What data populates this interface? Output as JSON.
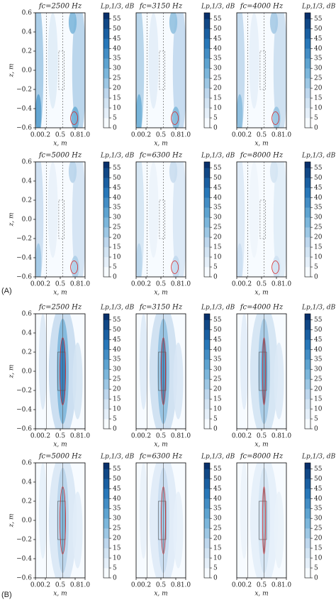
{
  "panel_labels": [
    "(A)",
    "(B)"
  ],
  "chart_data": [
    {
      "type": "contour",
      "title": "fc=2500 Hz",
      "xlabel": "x, m",
      "ylabel": "z, m",
      "xlim": [
        0,
        1
      ],
      "ylim": [
        -0.6,
        0.6
      ],
      "xticks": [
        {
          "value": 0,
          "label": "0.0"
        },
        {
          "value": 0.2,
          "label": "0.2"
        },
        {
          "value": 0.5,
          "label": "0.5"
        },
        {
          "value": 0.8,
          "label": "0.8"
        },
        {
          "value": 1,
          "label": "1.0"
        }
      ],
      "yticks": [
        {
          "value": -0.6,
          "label": "−0.6"
        },
        {
          "value": -0.4,
          "label": "−0.4"
        },
        {
          "value": -0.2,
          "label": "−0.2"
        },
        {
          "value": 0,
          "label": "0.0"
        },
        {
          "value": 0.2,
          "label": "0.2"
        },
        {
          "value": 0.4,
          "label": "0.4"
        },
        {
          "value": 0.6,
          "label": "0.6"
        }
      ],
      "colorbar": {
        "label": "Lp,1/3, dB",
        "lim": [
          0,
          58
        ],
        "ticks": [
          0,
          5,
          10,
          15,
          20,
          25,
          30,
          35,
          40,
          45,
          50,
          55
        ]
      }
    },
    {
      "type": "contour",
      "title": "fc=3150 Hz",
      "xlabel": "x, m",
      "xlim": [
        0,
        1
      ],
      "ylim": [
        -0.6,
        0.6
      ],
      "xticks": [
        {
          "value": 0,
          "label": "0.0"
        },
        {
          "value": 0.2,
          "label": "0.2"
        },
        {
          "value": 0.5,
          "label": "0.5"
        },
        {
          "value": 0.8,
          "label": "0.8"
        },
        {
          "value": 1,
          "label": "1.0"
        }
      ],
      "yticks": [],
      "colorbar": {
        "label": "Lp,1/3, dB",
        "lim": [
          0,
          58
        ],
        "ticks": [
          0,
          5,
          10,
          15,
          20,
          25,
          30,
          35,
          40,
          45,
          50,
          55
        ]
      }
    },
    {
      "type": "contour",
      "title": "fc=4000 Hz",
      "xlabel": "x, m",
      "xlim": [
        0,
        1
      ],
      "ylim": [
        -0.6,
        0.6
      ],
      "xticks": [
        {
          "value": 0,
          "label": "0.0"
        },
        {
          "value": 0.2,
          "label": "0.2"
        },
        {
          "value": 0.5,
          "label": "0.5"
        },
        {
          "value": 0.8,
          "label": "0.8"
        },
        {
          "value": 1,
          "label": "1.0"
        }
      ],
      "yticks": [],
      "colorbar": {
        "label": "Lp,1/3, dB",
        "lim": [
          0,
          58
        ],
        "ticks": [
          0,
          5,
          10,
          15,
          20,
          25,
          30,
          35,
          40,
          45,
          50,
          55
        ]
      }
    },
    {
      "type": "contour",
      "title": "fc=5000 Hz",
      "xlabel": "x, m",
      "ylabel": "z, m",
      "xlim": [
        0,
        1
      ],
      "ylim": [
        -0.6,
        0.6
      ],
      "xticks": [
        {
          "value": 0,
          "label": "0.0"
        },
        {
          "value": 0.2,
          "label": "0.2"
        },
        {
          "value": 0.5,
          "label": "0.5"
        },
        {
          "value": 0.8,
          "label": "0.8"
        },
        {
          "value": 1,
          "label": "1.0"
        }
      ],
      "yticks": [
        {
          "value": -0.6,
          "label": "−0.6"
        },
        {
          "value": -0.4,
          "label": "−0.4"
        },
        {
          "value": -0.2,
          "label": "−0.2"
        },
        {
          "value": 0,
          "label": "0.0"
        },
        {
          "value": 0.2,
          "label": "0.2"
        },
        {
          "value": 0.4,
          "label": "0.4"
        },
        {
          "value": 0.6,
          "label": "0.6"
        }
      ],
      "colorbar": {
        "label": "Lp,1/3, dB",
        "lim": [
          0,
          58
        ],
        "ticks": [
          0,
          5,
          10,
          15,
          20,
          25,
          30,
          35,
          40,
          45,
          50,
          55
        ]
      }
    },
    {
      "type": "contour",
      "title": "fc=6300 Hz",
      "xlabel": "x, m",
      "xlim": [
        0,
        1
      ],
      "ylim": [
        -0.6,
        0.6
      ],
      "xticks": [
        {
          "value": 0,
          "label": "0.0"
        },
        {
          "value": 0.2,
          "label": "0.2"
        },
        {
          "value": 0.5,
          "label": "0.5"
        },
        {
          "value": 0.8,
          "label": "0.8"
        },
        {
          "value": 1,
          "label": "1.0"
        }
      ],
      "yticks": [],
      "colorbar": {
        "label": "Lp,1/3, dB",
        "lim": [
          0,
          58
        ],
        "ticks": [
          0,
          5,
          10,
          15,
          20,
          25,
          30,
          35,
          40,
          45,
          50,
          55
        ]
      }
    },
    {
      "type": "contour",
      "title": "fc=8000 Hz",
      "xlabel": "x, m",
      "xlim": [
        0,
        1
      ],
      "ylim": [
        -0.6,
        0.6
      ],
      "xticks": [
        {
          "value": 0,
          "label": "0.0"
        },
        {
          "value": 0.2,
          "label": "0.2"
        },
        {
          "value": 0.5,
          "label": "0.5"
        },
        {
          "value": 0.8,
          "label": "0.8"
        },
        {
          "value": 1,
          "label": "1.0"
        }
      ],
      "yticks": [],
      "colorbar": {
        "label": "Lp,1/3, dB",
        "lim": [
          0,
          58
        ],
        "ticks": [
          0,
          5,
          10,
          15,
          20,
          25,
          30,
          35,
          40,
          45,
          50,
          55
        ]
      }
    },
    {
      "type": "contour",
      "title": "fc=2500 Hz",
      "xlabel": "x, m",
      "ylabel": "z, m",
      "xlim": [
        0,
        1
      ],
      "ylim": [
        -0.6,
        0.6
      ],
      "xticks": [
        {
          "value": 0,
          "label": "0.0"
        },
        {
          "value": 0.2,
          "label": "0.2"
        },
        {
          "value": 0.5,
          "label": "0.5"
        },
        {
          "value": 0.8,
          "label": "0.8"
        },
        {
          "value": 1,
          "label": "1.0"
        }
      ],
      "yticks": [
        {
          "value": -0.6,
          "label": "−0.6"
        },
        {
          "value": -0.4,
          "label": "−0.4"
        },
        {
          "value": -0.2,
          "label": "−0.2"
        },
        {
          "value": 0,
          "label": "0.0"
        },
        {
          "value": 0.2,
          "label": "0.2"
        },
        {
          "value": 0.4,
          "label": "0.4"
        },
        {
          "value": 0.6,
          "label": "0.6"
        }
      ],
      "colorbar": {
        "label": "Lp,1/3, dB",
        "lim": [
          0,
          58
        ],
        "ticks": [
          0,
          5,
          10,
          15,
          20,
          25,
          30,
          35,
          40,
          45,
          50,
          55
        ]
      }
    },
    {
      "type": "contour",
      "title": "fc=3150 Hz",
      "xlabel": "x, m",
      "xlim": [
        0,
        1
      ],
      "ylim": [
        -0.6,
        0.6
      ],
      "xticks": [
        {
          "value": 0,
          "label": "0.0"
        },
        {
          "value": 0.2,
          "label": "0.2"
        },
        {
          "value": 0.5,
          "label": "0.5"
        },
        {
          "value": 0.8,
          "label": "0.8"
        },
        {
          "value": 1,
          "label": "1.0"
        }
      ],
      "yticks": [],
      "colorbar": {
        "label": "Lp,1/3, dB",
        "lim": [
          0,
          58
        ],
        "ticks": [
          0,
          5,
          10,
          15,
          20,
          25,
          30,
          35,
          40,
          45,
          50,
          55
        ]
      }
    },
    {
      "type": "contour",
      "title": "fc=4000 Hz",
      "xlabel": "x, m",
      "xlim": [
        0,
        1
      ],
      "ylim": [
        -0.6,
        0.6
      ],
      "xticks": [
        {
          "value": 0,
          "label": "0.0"
        },
        {
          "value": 0.2,
          "label": "0.2"
        },
        {
          "value": 0.5,
          "label": "0.5"
        },
        {
          "value": 0.8,
          "label": "0.8"
        },
        {
          "value": 1,
          "label": "1.0"
        }
      ],
      "yticks": [],
      "colorbar": {
        "label": "Lp,1/3, dB",
        "lim": [
          0,
          58
        ],
        "ticks": [
          0,
          5,
          10,
          15,
          20,
          25,
          30,
          35,
          40,
          45,
          50,
          55
        ]
      }
    },
    {
      "type": "contour",
      "title": "fc=5000 Hz",
      "xlabel": "x, m",
      "ylabel": "z, m",
      "xlim": [
        0,
        1
      ],
      "ylim": [
        -0.6,
        0.6
      ],
      "xticks": [
        {
          "value": 0,
          "label": "0.0"
        },
        {
          "value": 0.2,
          "label": "0.2"
        },
        {
          "value": 0.5,
          "label": "0.5"
        },
        {
          "value": 0.8,
          "label": "0.8"
        },
        {
          "value": 1,
          "label": "1.0"
        }
      ],
      "yticks": [
        {
          "value": -0.6,
          "label": "−0.6"
        },
        {
          "value": -0.4,
          "label": "−0.4"
        },
        {
          "value": -0.2,
          "label": "−0.2"
        },
        {
          "value": 0,
          "label": "0.0"
        },
        {
          "value": 0.2,
          "label": "0.2"
        },
        {
          "value": 0.4,
          "label": "0.4"
        },
        {
          "value": 0.6,
          "label": "0.6"
        }
      ],
      "colorbar": {
        "label": "Lp,1/3, dB",
        "lim": [
          0,
          58
        ],
        "ticks": [
          0,
          5,
          10,
          15,
          20,
          25,
          30,
          35,
          40,
          45,
          50,
          55
        ]
      }
    },
    {
      "type": "contour",
      "title": "fc=6300 Hz",
      "xlabel": "x, m",
      "xlim": [
        0,
        1
      ],
      "ylim": [
        -0.6,
        0.6
      ],
      "xticks": [
        {
          "value": 0,
          "label": "0.0"
        },
        {
          "value": 0.2,
          "label": "0.2"
        },
        {
          "value": 0.5,
          "label": "0.5"
        },
        {
          "value": 0.8,
          "label": "0.8"
        },
        {
          "value": 1,
          "label": "1.0"
        }
      ],
      "yticks": [],
      "colorbar": {
        "label": "Lp,1/3, dB",
        "lim": [
          0,
          58
        ],
        "ticks": [
          0,
          5,
          10,
          15,
          20,
          25,
          30,
          35,
          40,
          45,
          50,
          55
        ]
      }
    },
    {
      "type": "contour",
      "title": "fc=8000 Hz",
      "xlabel": "x, m",
      "xlim": [
        0,
        1
      ],
      "ylim": [
        -0.6,
        0.6
      ],
      "xticks": [
        {
          "value": 0,
          "label": "0.0"
        },
        {
          "value": 0.2,
          "label": "0.2"
        },
        {
          "value": 0.5,
          "label": "0.5"
        },
        {
          "value": 0.8,
          "label": "0.8"
        },
        {
          "value": 1,
          "label": "1.0"
        }
      ],
      "yticks": [],
      "colorbar": {
        "label": "Lp,1/3, dB",
        "lim": [
          0,
          58
        ],
        "ticks": [
          0,
          5,
          10,
          15,
          20,
          25,
          30,
          35,
          40,
          45,
          50,
          55
        ]
      }
    }
  ]
}
